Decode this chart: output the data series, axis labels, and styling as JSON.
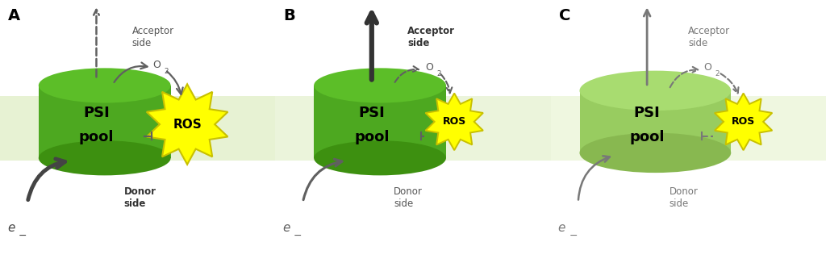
{
  "bg_color": "#ffffff",
  "panels": [
    "A",
    "B",
    "C"
  ],
  "mem_color": "#d4e8b0",
  "mem_color_C": "#e0eec8",
  "cyl_body_A": "#4da820",
  "cyl_top_A": "#5cbe28",
  "cyl_bot_A": "#3d9010",
  "cyl_body_C": "#98cc60",
  "cyl_top_C": "#a8dc70",
  "cyl_bot_C": "#88b850",
  "ros_fill": "#ffff00",
  "ros_edge": "#c8c000",
  "arrow_dark": "#444444",
  "arrow_mid": "#606060",
  "arrow_light": "#787878",
  "text_dark": "#333333",
  "text_mid": "#555555",
  "text_light": "#777777"
}
